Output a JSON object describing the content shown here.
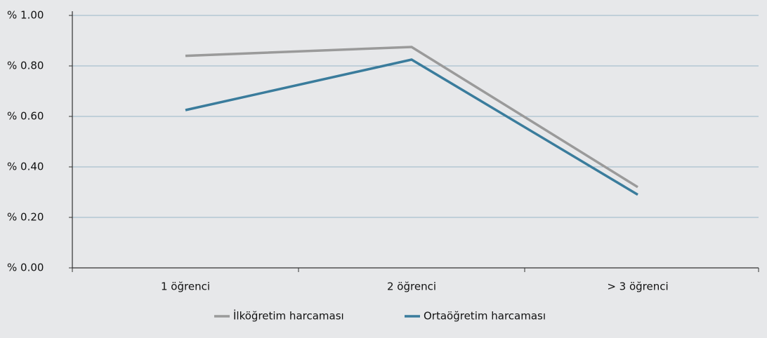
{
  "chart_data": {
    "type": "line",
    "categories": [
      "1 öğrenci",
      "2 öğrenci",
      "> 3 öğrenci"
    ],
    "series": [
      {
        "name": "İlköğretim harcaması",
        "color": "#9a9a9a",
        "values": [
          0.84,
          0.875,
          0.32
        ]
      },
      {
        "name": "Ortaöğretim harcaması",
        "color": "#3a7c9c",
        "values": [
          0.625,
          0.825,
          0.29
        ]
      }
    ],
    "ylim": [
      0,
      1
    ],
    "yticks": [
      {
        "value": 0,
        "label": "% 0.00"
      },
      {
        "value": 0.2,
        "label": "% 0.20"
      },
      {
        "value": 0.4,
        "label": "% 0.40"
      },
      {
        "value": 0.6,
        "label": "% 0.60"
      },
      {
        "value": 0.8,
        "label": "% 0.80"
      },
      {
        "value": 1,
        "label": "% 1.00"
      }
    ],
    "grid": true,
    "legend": "bottom"
  }
}
